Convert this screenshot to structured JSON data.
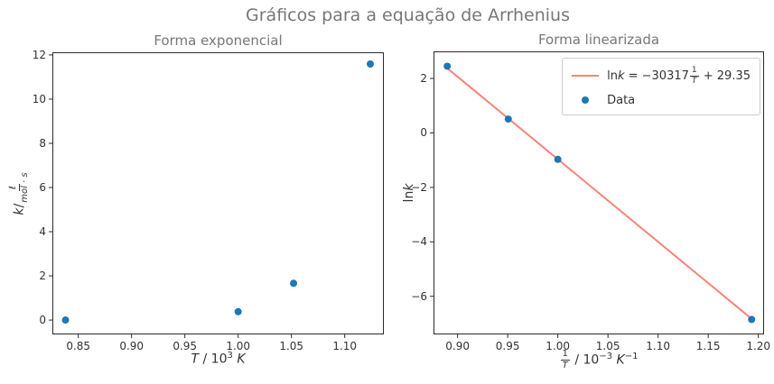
{
  "figure": {
    "suptitle": "Gráficos para a equação de Arrhenius",
    "colors": {
      "title_gray": "#777777",
      "text_dark": "#333333",
      "point_blue": "#1f77b4",
      "fit_red": "#f88379",
      "spine": "#2b2b2b",
      "legend_border": "#cccccc"
    }
  },
  "chart_data": [
    {
      "type": "scatter",
      "title": "Forma exponencial",
      "xlabel": "T / 10^3 K",
      "ylabel": "k / (ℓ/(mol·s))",
      "xlabel_parts": {
        "var1": "T",
        "sep": " / 10",
        "sup": "3",
        "space": " ",
        "var2": "K"
      },
      "ylabel_parts": {
        "pre": "k",
        "slash": "/",
        "frac_num": "ℓ",
        "frac_den": "mol · s"
      },
      "xlim": [
        0.8257,
        1.1367
      ],
      "ylim": [
        -0.65,
        12.12
      ],
      "xticks": [
        0.85,
        0.9,
        0.95,
        1.0,
        1.05,
        1.1
      ],
      "xtick_labels": [
        "0.85",
        "0.90",
        "0.95",
        "1.00",
        "1.05",
        "1.10"
      ],
      "yticks": [
        0,
        2,
        4,
        6,
        8,
        10,
        12
      ],
      "ytick_labels": [
        "0",
        "2",
        "4",
        "6",
        "8",
        "10",
        "12"
      ],
      "points_x": [
        0.838,
        1.0,
        1.052,
        1.124
      ],
      "points_y": [
        0.0011,
        0.379,
        1.665,
        11.59
      ],
      "grid": false
    },
    {
      "type": "scatter_line",
      "title": "Forma linearizada",
      "xlabel": "1/T / 10^-3 K^-1",
      "ylabel": "ln k",
      "xlabel_parts": {
        "frac_num": "1",
        "frac_den": "T",
        "sep": " / 10",
        "sup": "−3",
        "space": " ",
        "var": "K",
        "sup2": "−1"
      },
      "ylabel_parts": {
        "pre": "ln",
        "var": "k"
      },
      "xlim": [
        0.876,
        1.2057
      ],
      "ylim": [
        -7.4,
        2.995
      ],
      "xticks": [
        0.9,
        0.95,
        1.0,
        1.05,
        1.1,
        1.15,
        1.2
      ],
      "xtick_labels": [
        "0.90",
        "0.95",
        "1.00",
        "1.05",
        "1.10",
        "1.15",
        "1.20"
      ],
      "yticks": [
        -6,
        -4,
        -2,
        0,
        2
      ],
      "ytick_labels": [
        "−6",
        "−4",
        "−2",
        "0",
        "2"
      ],
      "points_x": [
        0.8897,
        0.9506,
        1.0,
        1.1933
      ],
      "points_y": [
        2.45,
        0.51,
        -0.97,
        -6.85
      ],
      "fit": {
        "slope": -30317,
        "intercept": 29.35,
        "x_unit": 0.001,
        "x_start": 0.8897,
        "x_end": 1.1933
      },
      "legend": {
        "position": "upper right",
        "line_label_parts": {
          "pre": "ln",
          "var": "k",
          "eq": " = −30317",
          "frac_num": "1",
          "frac_den": "T",
          "post": " + 29.35"
        },
        "data_label": "Data"
      },
      "grid": false
    }
  ]
}
